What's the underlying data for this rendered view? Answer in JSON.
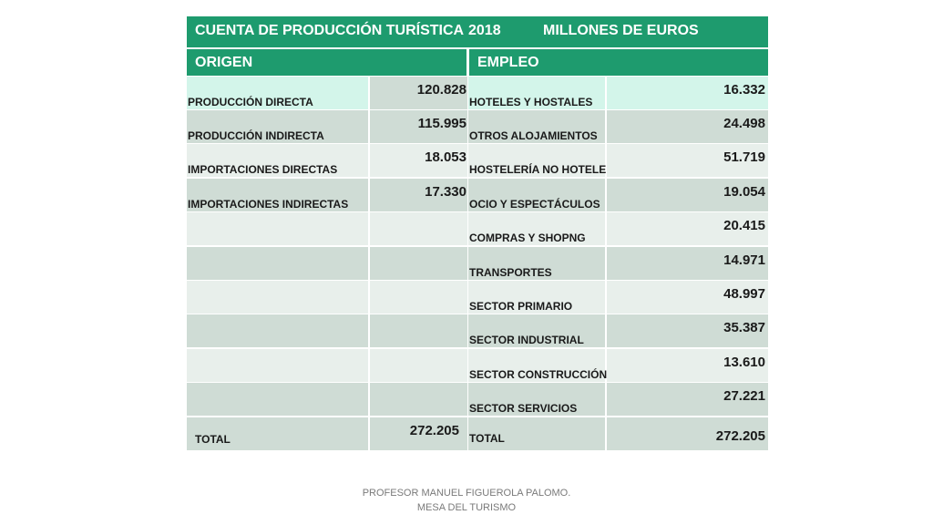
{
  "title": {
    "main": "CUENTA DE PRODUCCIÓN TURÍSTICA",
    "year": "2018",
    "unit": "MILLONES DE EUROS"
  },
  "headers": {
    "left": "ORIGEN",
    "right": "EMPLEO"
  },
  "rows": [
    {
      "o_label": "PRODUCCIÓN DIRECTA",
      "o_value": "120.828",
      "e_label": "HOTELES Y HOSTALES",
      "e_value": "16.332"
    },
    {
      "o_label": "PRODUCCIÓN INDIRECTA",
      "o_value": "115.995",
      "e_label": "OTROS ALOJAMIENTOS",
      "e_value": "24.498"
    },
    {
      "o_label": "IMPORTACIONES DIRECTAS",
      "o_value": "18.053",
      "e_label": "HOSTELERÍA NO HOTELER",
      "e_value": "51.719"
    },
    {
      "o_label": "IMPORTACIONES INDIRECTAS",
      "o_value": "17.330",
      "e_label": "OCIO Y ESPECTÁCULOS",
      "e_value": "19.054"
    },
    {
      "o_label": "",
      "o_value": "",
      "e_label": "COMPRAS Y SHOPNG",
      "e_value": "20.415"
    },
    {
      "o_label": "",
      "o_value": "",
      "e_label": "TRANSPORTES",
      "e_value": "14.971"
    },
    {
      "o_label": "",
      "o_value": "",
      "e_label": "SECTOR PRIMARIO",
      "e_value": "48.997"
    },
    {
      "o_label": "",
      "o_value": "",
      "e_label": "SECTOR INDUSTRIAL",
      "e_value": "35.387"
    },
    {
      "o_label": "",
      "o_value": "",
      "e_label": "SECTOR CONSTRUCCIÓN",
      "e_value": "13.610"
    },
    {
      "o_label": "",
      "o_value": "",
      "e_label": "SECTOR SERVICIOS",
      "e_value": "27.221"
    }
  ],
  "totals": {
    "o_label": "TOTAL",
    "o_value": "272.205",
    "e_label": "TOTAL",
    "e_value": "272.205"
  },
  "footer": {
    "line1": "PROFESOR MANUEL FIGUEROLA PALOMO.",
    "line2": "MESA DEL TURISMO"
  },
  "colors": {
    "header": "#1e9b6e",
    "row_first": "#d3f5ea",
    "row_dark": "#cfdcd5",
    "row_light": "#e8efeb"
  }
}
